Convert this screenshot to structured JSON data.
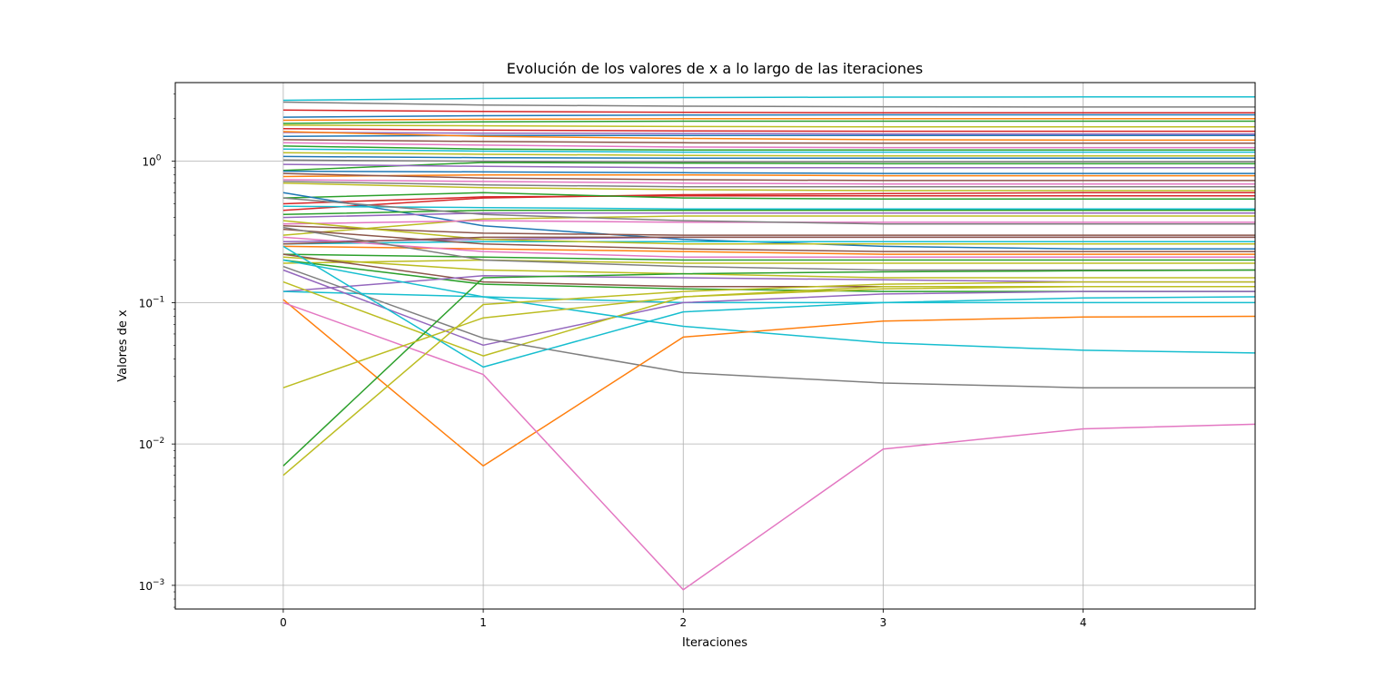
{
  "chart_data": {
    "type": "line",
    "title": "Evolución de los valores de x a lo largo de las iteraciones",
    "xlabel": "Iteraciones",
    "ylabel": "Valores de x",
    "yscale": "log",
    "grid": true,
    "legend": "none",
    "xlim": [
      -0.54,
      4.86
    ],
    "ylim": [
      0.00068,
      3.6
    ],
    "x": [
      0,
      1,
      2,
      3,
      4,
      4.86
    ],
    "x_ticks": [
      "0",
      "1",
      "2",
      "3",
      "4"
    ],
    "y_ticks": [
      {
        "value": 0.001,
        "base": "10",
        "exp": "−3"
      },
      {
        "value": 0.01,
        "base": "10",
        "exp": "−2"
      },
      {
        "value": 0.1,
        "base": "10",
        "exp": "−1"
      },
      {
        "value": 1,
        "base": "10",
        "exp": "0"
      }
    ],
    "series": [
      {
        "color": "#17becf",
        "values": [
          2.7,
          2.78,
          2.82,
          2.84,
          2.85,
          2.85
        ]
      },
      {
        "color": "#7f7f7f",
        "values": [
          2.62,
          2.5,
          2.45,
          2.43,
          2.42,
          2.42
        ]
      },
      {
        "color": "#d62728",
        "values": [
          2.3,
          2.25,
          2.22,
          2.2,
          2.2,
          2.2
        ]
      },
      {
        "color": "#1f77b4",
        "values": [
          2.05,
          2.1,
          2.12,
          2.13,
          2.13,
          2.13
        ]
      },
      {
        "color": "#ff7f0e",
        "values": [
          1.95,
          1.98,
          2.0,
          2.0,
          2.0,
          2.0
        ]
      },
      {
        "color": "#2ca02c",
        "values": [
          1.85,
          1.9,
          1.92,
          1.92,
          1.92,
          1.92
        ]
      },
      {
        "color": "#bcbd22",
        "values": [
          1.8,
          1.78,
          1.76,
          1.75,
          1.75,
          1.75
        ]
      },
      {
        "color": "#d62728",
        "values": [
          1.7,
          1.66,
          1.64,
          1.63,
          1.63,
          1.63
        ]
      },
      {
        "color": "#9467bd",
        "values": [
          1.6,
          1.58,
          1.57,
          1.56,
          1.56,
          1.56
        ]
      },
      {
        "color": "#1f77b4",
        "values": [
          1.5,
          1.52,
          1.52,
          1.52,
          1.52,
          1.52
        ]
      },
      {
        "color": "#ff7f0e",
        "values": [
          1.62,
          1.5,
          1.45,
          1.42,
          1.41,
          1.41
        ]
      },
      {
        "color": "#8c564b",
        "values": [
          1.42,
          1.38,
          1.35,
          1.34,
          1.34,
          1.34
        ]
      },
      {
        "color": "#e377c2",
        "values": [
          1.35,
          1.3,
          1.26,
          1.25,
          1.25,
          1.25
        ]
      },
      {
        "color": "#2ca02c",
        "values": [
          1.28,
          1.22,
          1.2,
          1.2,
          1.2,
          1.2
        ]
      },
      {
        "color": "#17becf",
        "values": [
          1.22,
          1.18,
          1.16,
          1.16,
          1.16,
          1.16
        ]
      },
      {
        "color": "#bcbd22",
        "values": [
          1.15,
          1.12,
          1.1,
          1.09,
          1.09,
          1.09
        ]
      },
      {
        "color": "#1f77b4",
        "values": [
          1.08,
          1.06,
          1.05,
          1.05,
          1.05,
          1.05
        ]
      },
      {
        "color": "#7f7f7f",
        "values": [
          1.02,
          1.0,
          0.99,
          0.99,
          0.99,
          0.99
        ]
      },
      {
        "color": "#2ca02c",
        "values": [
          0.86,
          0.98,
          0.97,
          0.96,
          0.96,
          0.96
        ]
      },
      {
        "color": "#9467bd",
        "values": [
          0.95,
          0.92,
          0.9,
          0.9,
          0.9,
          0.9
        ]
      },
      {
        "color": "#1f77b4",
        "values": [
          0.85,
          0.84,
          0.83,
          0.82,
          0.82,
          0.82
        ]
      },
      {
        "color": "#ff7f0e",
        "values": [
          0.78,
          0.8,
          0.8,
          0.79,
          0.79,
          0.79
        ]
      },
      {
        "color": "#8c564b",
        "values": [
          0.82,
          0.76,
          0.74,
          0.73,
          0.73,
          0.73
        ]
      },
      {
        "color": "#e377c2",
        "values": [
          0.74,
          0.72,
          0.7,
          0.69,
          0.69,
          0.69
        ]
      },
      {
        "color": "#7f7f7f",
        "values": [
          0.72,
          0.68,
          0.66,
          0.66,
          0.66,
          0.66
        ]
      },
      {
        "color": "#bcbd22",
        "values": [
          0.7,
          0.65,
          0.63,
          0.62,
          0.62,
          0.62
        ]
      },
      {
        "color": "#d62728",
        "values": [
          0.45,
          0.55,
          0.58,
          0.59,
          0.6,
          0.6
        ]
      },
      {
        "color": "#d62728",
        "values": [
          0.5,
          0.56,
          0.57,
          0.57,
          0.57,
          0.57
        ]
      },
      {
        "color": "#2ca02c",
        "values": [
          0.55,
          0.6,
          0.55,
          0.54,
          0.54,
          0.54
        ]
      },
      {
        "color": "#1f77b4",
        "values": [
          0.6,
          0.35,
          0.28,
          0.25,
          0.24,
          0.24
        ]
      },
      {
        "color": "#17becf",
        "values": [
          0.48,
          0.47,
          0.46,
          0.46,
          0.46,
          0.46
        ]
      },
      {
        "color": "#2ca02c",
        "values": [
          0.42,
          0.45,
          0.45,
          0.45,
          0.45,
          0.45
        ]
      },
      {
        "color": "#9467bd",
        "values": [
          0.4,
          0.43,
          0.43,
          0.43,
          0.43,
          0.43
        ]
      },
      {
        "color": "#bcbd22",
        "values": [
          0.3,
          0.39,
          0.41,
          0.41,
          0.41,
          0.41
        ]
      },
      {
        "color": "#e377c2",
        "values": [
          0.36,
          0.38,
          0.37,
          0.37,
          0.37,
          0.37
        ]
      },
      {
        "color": "#7f7f7f",
        "values": [
          0.55,
          0.42,
          0.38,
          0.36,
          0.36,
          0.36
        ]
      },
      {
        "color": "#8c564b",
        "values": [
          0.35,
          0.31,
          0.3,
          0.3,
          0.3,
          0.3
        ]
      },
      {
        "color": "#9467bd",
        "values": [
          0.27,
          0.28,
          0.29,
          0.29,
          0.29,
          0.29
        ]
      },
      {
        "color": "#17becf",
        "values": [
          0.26,
          0.27,
          0.27,
          0.27,
          0.27,
          0.27
        ]
      },
      {
        "color": "#bcbd22",
        "values": [
          0.38,
          0.28,
          0.26,
          0.26,
          0.26,
          0.26
        ]
      },
      {
        "color": "#8c564b",
        "values": [
          0.33,
          0.26,
          0.24,
          0.23,
          0.23,
          0.23
        ]
      },
      {
        "color": "#ff7f0e",
        "values": [
          0.25,
          0.24,
          0.23,
          0.22,
          0.22,
          0.22
        ]
      },
      {
        "color": "#e377c2",
        "values": [
          0.29,
          0.23,
          0.21,
          0.21,
          0.21,
          0.21
        ]
      },
      {
        "color": "#2ca02c",
        "values": [
          0.22,
          0.21,
          0.2,
          0.2,
          0.2,
          0.2
        ]
      },
      {
        "color": "#bcbd22",
        "values": [
          0.19,
          0.2,
          0.19,
          0.19,
          0.19,
          0.19
        ]
      },
      {
        "color": "#7f7f7f",
        "values": [
          0.34,
          0.2,
          0.18,
          0.17,
          0.17,
          0.17
        ]
      },
      {
        "color": "#bcbd22",
        "values": [
          0.21,
          0.17,
          0.16,
          0.15,
          0.15,
          0.15
        ]
      },
      {
        "color": "#8c564b",
        "values": [
          0.22,
          0.14,
          0.13,
          0.13,
          0.13,
          0.13
        ]
      },
      {
        "color": "#2ca02c",
        "values": [
          0.2,
          0.135,
          0.125,
          0.12,
          0.12,
          0.12
        ]
      },
      {
        "color": "#9467bd",
        "values": [
          0.12,
          0.155,
          0.15,
          0.145,
          0.14,
          0.14
        ]
      },
      {
        "color": "#17becf",
        "values": [
          0.12,
          0.11,
          0.1,
          0.1,
          0.1,
          0.1
        ]
      },
      {
        "color": "#9467bd",
        "values": [
          0.17,
          0.05,
          0.1,
          0.115,
          0.12,
          0.12
        ]
      },
      {
        "color": "#bcbd22",
        "values": [
          0.14,
          0.042,
          0.11,
          0.13,
          0.13,
          0.13
        ]
      },
      {
        "color": "#7f7f7f",
        "values": [
          0.18,
          0.056,
          0.032,
          0.027,
          0.025,
          0.025
        ]
      },
      {
        "color": "#17becf",
        "values": [
          0.25,
          0.035,
          0.086,
          0.1,
          0.108,
          0.11
        ]
      },
      {
        "color": "#17becf",
        "values": [
          0.2,
          0.11,
          0.068,
          0.052,
          0.046,
          0.044
        ]
      },
      {
        "color": "#ff7f0e",
        "values": [
          0.105,
          0.007,
          0.057,
          0.074,
          0.079,
          0.08
        ]
      },
      {
        "color": "#e377c2",
        "values": [
          0.1,
          0.031,
          0.00093,
          0.0092,
          0.0128,
          0.0138
        ]
      },
      {
        "color": "#2ca02c",
        "values": [
          0.007,
          0.15,
          0.16,
          0.165,
          0.168,
          0.17
        ]
      },
      {
        "color": "#bcbd22",
        "values": [
          0.006,
          0.097,
          0.12,
          0.135,
          0.14,
          0.14
        ]
      },
      {
        "color": "#bcbd22",
        "values": [
          0.025,
          0.078,
          0.11,
          0.125,
          0.13,
          0.13
        ]
      },
      {
        "color": "#8c564b",
        "values": [
          0.26,
          0.29,
          0.29,
          0.29,
          0.29,
          0.29
        ]
      }
    ]
  }
}
